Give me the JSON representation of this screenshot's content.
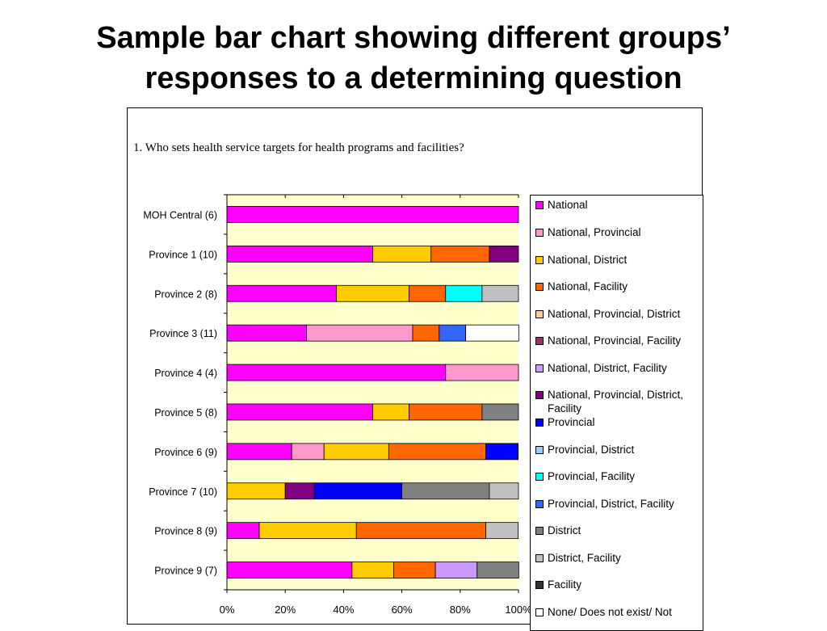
{
  "slide": {
    "title_line1": "Sample bar chart showing different groups’",
    "title_line2": "responses to a determining question"
  },
  "chart_data": {
    "type": "bar",
    "orientation": "horizontal",
    "stacked": true,
    "title": "1. Who sets health service targets for health programs and facilities?",
    "categories": [
      "MOH Central (6)",
      "Province 1 (10)",
      "Province 2 (8)",
      "Province 3 (11)",
      "Province 4 (4)",
      "Province 5 (8)",
      "Province 6 (9)",
      "Province 7 (10)",
      "Province 8 (9)",
      "Province 9 (7)"
    ],
    "x_ticks": [
      "0%",
      "20%",
      "40%",
      "60%",
      "80%",
      "100%"
    ],
    "xlim": [
      0,
      100
    ],
    "legend_position": "right",
    "grid": false,
    "plot_background": "#FFFFCC",
    "series": [
      {
        "name": "National",
        "color": "#FF00FF",
        "values": [
          100,
          50,
          37.5,
          27.3,
          75,
          50,
          22.2,
          0,
          11.1,
          42.9
        ]
      },
      {
        "name": "National, Provincial",
        "color": "#FF99CC",
        "values": [
          0,
          0,
          0,
          36.4,
          25,
          0,
          11.1,
          0,
          0,
          0
        ]
      },
      {
        "name": "National, District",
        "color": "#FFCC00",
        "values": [
          0,
          20,
          25,
          0,
          0,
          12.5,
          22.2,
          20,
          33.3,
          14.3
        ]
      },
      {
        "name": "National, Facility",
        "color": "#FF6600",
        "values": [
          0,
          20,
          12.5,
          9.1,
          0,
          25,
          33.3,
          0,
          44.4,
          14.3
        ]
      },
      {
        "name": "National, Provincial, District",
        "color": "#FFCC99",
        "values": [
          0,
          0,
          0,
          0,
          0,
          0,
          0,
          0,
          0,
          0
        ]
      },
      {
        "name": "National, Provincial, Facility",
        "color": "#993366",
        "values": [
          0,
          0,
          0,
          0,
          0,
          0,
          0,
          0,
          0,
          0
        ]
      },
      {
        "name": "National, District, Facility",
        "color": "#CC99FF",
        "values": [
          0,
          0,
          0,
          0,
          0,
          0,
          0,
          0,
          0,
          14.3
        ]
      },
      {
        "name": "National, Provincial, District, Facility",
        "color": "#800080",
        "values": [
          0,
          10,
          0,
          0,
          0,
          0,
          0,
          10,
          0,
          0
        ]
      },
      {
        "name": "Provincial",
        "color": "#0000FF",
        "values": [
          0,
          0,
          0,
          0,
          0,
          0,
          11.1,
          30,
          0,
          0
        ]
      },
      {
        "name": "Provincial, District",
        "color": "#99CCFF",
        "values": [
          0,
          0,
          0,
          0,
          0,
          0,
          0,
          0,
          0,
          0
        ]
      },
      {
        "name": "Provincial, Facility",
        "color": "#00FFFF",
        "values": [
          0,
          0,
          12.5,
          0,
          0,
          0,
          0,
          0,
          0,
          0
        ]
      },
      {
        "name": "Provincial, District, Facility",
        "color": "#3366FF",
        "values": [
          0,
          0,
          0,
          9.1,
          0,
          0,
          0,
          0,
          0,
          0
        ]
      },
      {
        "name": "District",
        "color": "#808080",
        "values": [
          0,
          0,
          0,
          0,
          0,
          12.5,
          0,
          30,
          0,
          14.3
        ]
      },
      {
        "name": "District, Facility",
        "color": "#C0C0C0",
        "values": [
          0,
          0,
          12.5,
          0,
          0,
          0,
          0,
          10,
          11.1,
          0
        ]
      },
      {
        "name": "Facility",
        "color": "#333333",
        "values": [
          0,
          0,
          0,
          0,
          0,
          0,
          0,
          0,
          0,
          0
        ]
      },
      {
        "name": "None/ Does not exist/ Not",
        "color": "#FFFFFF",
        "values": [
          0,
          0,
          0,
          18.2,
          0,
          0,
          0,
          0,
          0,
          0
        ]
      }
    ]
  }
}
